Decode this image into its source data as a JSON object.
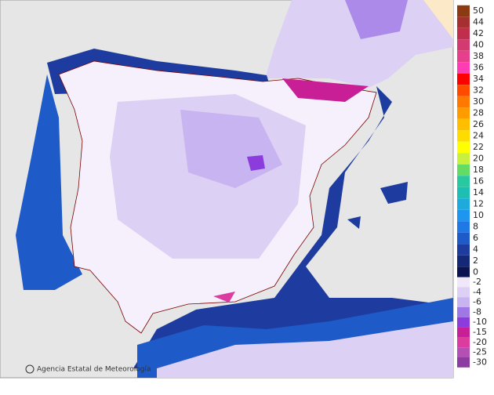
{
  "credit": "Agencia Estatal de Meteorología",
  "legend": {
    "positive": [
      {
        "label": 50,
        "color": "#8c3a12"
      },
      {
        "label": 44,
        "color": "#a53030"
      },
      {
        "label": 42,
        "color": "#bf2f4c"
      },
      {
        "label": 40,
        "color": "#d33a70"
      },
      {
        "label": 38,
        "color": "#e6408c"
      },
      {
        "label": 36,
        "color": "#ff3cb4"
      },
      {
        "label": 34,
        "color": "#ff0000"
      },
      {
        "label": 32,
        "color": "#ff4a00"
      },
      {
        "label": 30,
        "color": "#ff7800"
      },
      {
        "label": 28,
        "color": "#ff9a00"
      },
      {
        "label": 26,
        "color": "#ffbe00"
      },
      {
        "label": 24,
        "color": "#ffdc00"
      },
      {
        "label": 22,
        "color": "#ffff00"
      },
      {
        "label": 20,
        "color": "#c8f03c"
      },
      {
        "label": 18,
        "color": "#64dc64"
      },
      {
        "label": 16,
        "color": "#28c8a0"
      },
      {
        "label": 14,
        "color": "#1ebeb4"
      },
      {
        "label": 12,
        "color": "#1eaadc"
      },
      {
        "label": 10,
        "color": "#1e96f0"
      },
      {
        "label": 8,
        "color": "#1e78e6"
      },
      {
        "label": 6,
        "color": "#1e5ac8"
      },
      {
        "label": 4,
        "color": "#1e3ca0"
      },
      {
        "label": 2,
        "color": "#142878"
      },
      {
        "label": 0,
        "color": "#0a1450"
      }
    ],
    "negative": [
      {
        "label": -2,
        "color": "#f0e8f8"
      },
      {
        "label": -4,
        "color": "#dcd0f4"
      },
      {
        "label": -6,
        "color": "#c8b4f0"
      },
      {
        "label": -8,
        "color": "#a078e6"
      },
      {
        "label": -10,
        "color": "#8c3cdc"
      },
      {
        "label": -15,
        "color": "#c81e96"
      },
      {
        "label": -20,
        "color": "#dc3ca0"
      },
      {
        "label": -25,
        "color": "#b450b4"
      },
      {
        "label": -30,
        "color": "#8c3ca0"
      }
    ]
  }
}
